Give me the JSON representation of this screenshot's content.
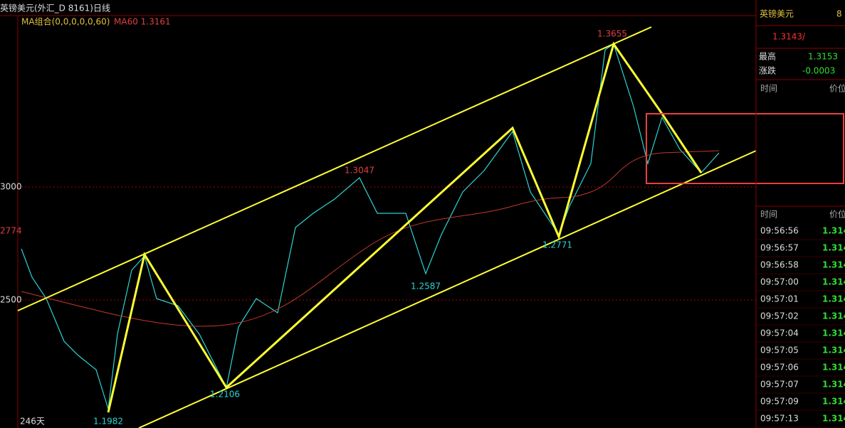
{
  "header": {
    "title": "英镑美元(外汇_D 8161)日线",
    "ma_group": "MA组合(0,0,0,0,0,60)",
    "ma60": "MA60 1.3161"
  },
  "axis_labels": [
    "3000",
    "2774",
    "2500"
  ],
  "price_labels": [
    "1.3655",
    "1.3047",
    "1.2587",
    "1.2771",
    "1.2106",
    "1.1982"
  ],
  "period": "246天",
  "quote": {
    "name": "英镑美元",
    "code": "8",
    "price": "1.3143/",
    "high_label": "最高",
    "high": "1.3153",
    "change_label": "涨跌",
    "change": "-0.0003"
  },
  "tick_header": {
    "time": "时间",
    "price": "价位"
  },
  "trade_header": {
    "time": "时间",
    "price": "价位"
  },
  "trades": [
    [
      "09:56:56",
      "1.314"
    ],
    [
      "09:56:57",
      "1.314"
    ],
    [
      "09:56:58",
      "1.314"
    ],
    [
      "09:57:00",
      "1.314"
    ],
    [
      "09:57:01",
      "1.314"
    ],
    [
      "09:57:02",
      "1.314"
    ],
    [
      "09:57:04",
      "1.314"
    ],
    [
      "09:57:05",
      "1.314"
    ],
    [
      "09:57:06",
      "1.314"
    ],
    [
      "09:57:07",
      "1.314"
    ],
    [
      "09:57:09",
      "1.314"
    ],
    [
      "09:57:13",
      "1.314"
    ]
  ]
}
